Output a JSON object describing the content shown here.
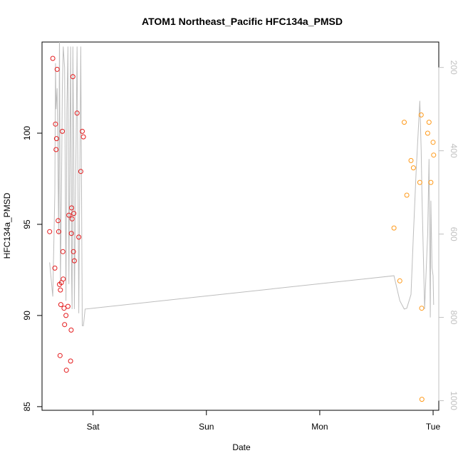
{
  "chart_data": {
    "type": "scatter",
    "title": "ATOM1 Northeast_Pacific HFC134a_PMSD",
    "xlabel": "Date",
    "ylabel": "HFC134a_PMSD",
    "x_ticks": [
      {
        "label": "Sat",
        "value": 1.0
      },
      {
        "label": "Sun",
        "value": 2.0
      },
      {
        "label": "Mon",
        "value": 3.0
      },
      {
        "label": "Tue",
        "value": 4.0
      }
    ],
    "xlim": [
      0.55,
      4.05
    ],
    "ylim": [
      84.8,
      105.0
    ],
    "y_ticks": [
      85,
      90,
      95,
      100
    ],
    "y2_ticks": [
      200,
      400,
      600,
      800,
      1000
    ],
    "y2lim": [
      1023,
      139
    ],
    "grid": false,
    "colors": {
      "series_red": "#e41a1c",
      "series_orange": "#ff9a1a",
      "line": "#bdbdbd",
      "axis": "#000000",
      "y2_axis": "#c0c0c0"
    },
    "series": [
      {
        "color": "series_red",
        "points": [
          [
            0.617,
            94.6
          ],
          [
            0.645,
            104.1
          ],
          [
            0.663,
            92.6
          ],
          [
            0.669,
            100.5
          ],
          [
            0.674,
            99.1
          ],
          [
            0.678,
            99.7
          ],
          [
            0.683,
            103.5
          ],
          [
            0.692,
            95.2
          ],
          [
            0.697,
            94.6
          ],
          [
            0.704,
            91.7
          ],
          [
            0.709,
            87.8
          ],
          [
            0.712,
            91.4
          ],
          [
            0.716,
            90.6
          ],
          [
            0.721,
            91.8
          ],
          [
            0.729,
            100.1
          ],
          [
            0.734,
            93.5
          ],
          [
            0.737,
            92.0
          ],
          [
            0.744,
            90.4
          ],
          [
            0.749,
            89.5
          ],
          [
            0.761,
            90.0
          ],
          [
            0.765,
            87.0
          ],
          [
            0.779,
            90.5
          ],
          [
            0.787,
            95.5
          ],
          [
            0.802,
            87.5
          ],
          [
            0.807,
            89.2
          ],
          [
            0.809,
            94.5
          ],
          [
            0.811,
            95.9
          ],
          [
            0.815,
            95.3
          ],
          [
            0.822,
            103.1
          ],
          [
            0.827,
            93.5
          ],
          [
            0.83,
            95.6
          ],
          [
            0.835,
            93.0
          ],
          [
            0.859,
            101.1
          ],
          [
            0.874,
            94.3
          ],
          [
            0.892,
            97.9
          ],
          [
            0.905,
            100.1
          ],
          [
            0.915,
            99.8
          ]
        ]
      },
      {
        "color": "series_orange",
        "points": [
          [
            3.655,
            94.8
          ],
          [
            3.706,
            91.9
          ],
          [
            3.745,
            100.6
          ],
          [
            3.768,
            96.6
          ],
          [
            3.805,
            98.5
          ],
          [
            3.826,
            98.1
          ],
          [
            3.883,
            97.3
          ],
          [
            3.895,
            101.0
          ],
          [
            3.899,
            90.4
          ],
          [
            3.901,
            85.4
          ],
          [
            3.952,
            100.0
          ],
          [
            3.964,
            100.6
          ],
          [
            3.98,
            97.3
          ],
          [
            4.0,
            99.5
          ],
          [
            4.005,
            98.8
          ]
        ]
      }
    ],
    "line_y2": [
      [
        0.617,
        668
      ],
      [
        0.645,
        750
      ],
      [
        0.663,
        500
      ],
      [
        0.669,
        190
      ],
      [
        0.674,
        300
      ],
      [
        0.683,
        250
      ],
      [
        0.692,
        480
      ],
      [
        0.697,
        600
      ],
      [
        0.704,
        110
      ],
      [
        0.712,
        720
      ],
      [
        0.721,
        520
      ],
      [
        0.729,
        250
      ],
      [
        0.737,
        150
      ],
      [
        0.744,
        180
      ],
      [
        0.749,
        200
      ],
      [
        0.761,
        760
      ],
      [
        0.769,
        300
      ],
      [
        0.779,
        150
      ],
      [
        0.787,
        720
      ],
      [
        0.802,
        150
      ],
      [
        0.811,
        700
      ],
      [
        0.815,
        780
      ],
      [
        0.822,
        150
      ],
      [
        0.83,
        400
      ],
      [
        0.835,
        780
      ],
      [
        0.859,
        150
      ],
      [
        0.874,
        790
      ],
      [
        0.892,
        150
      ],
      [
        0.905,
        820
      ],
      [
        0.915,
        820
      ],
      [
        0.93,
        780
      ],
      [
        3.655,
        700
      ],
      [
        3.706,
        760
      ],
      [
        3.745,
        780
      ],
      [
        3.768,
        778
      ],
      [
        3.805,
        745
      ],
      [
        3.826,
        600
      ],
      [
        3.85,
        450
      ],
      [
        3.883,
        280
      ],
      [
        3.895,
        400
      ],
      [
        3.901,
        500
      ],
      [
        3.925,
        780
      ],
      [
        3.952,
        600
      ],
      [
        3.964,
        420
      ],
      [
        3.975,
        800
      ],
      [
        3.98,
        520
      ],
      [
        3.99,
        680
      ],
      [
        4.0,
        700
      ],
      [
        4.005,
        770
      ]
    ]
  }
}
